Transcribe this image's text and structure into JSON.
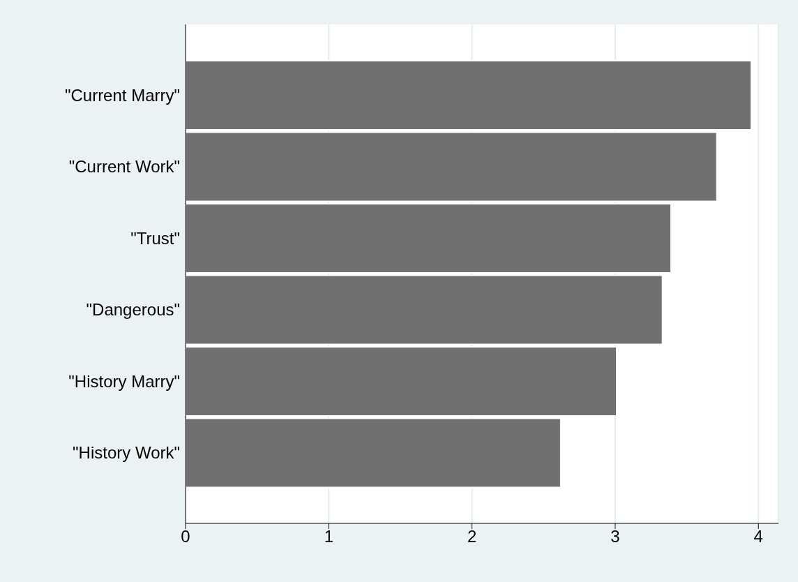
{
  "chart_data": {
    "type": "bar",
    "orientation": "horizontal",
    "categories": [
      "\"Current Marry\"",
      "\"Current Work\"",
      "\"Trust\"",
      "\"Dangerous\"",
      "\"History Marry\"",
      "\"History Work\""
    ],
    "values": [
      3.95,
      3.71,
      3.39,
      3.33,
      3.01,
      2.62
    ],
    "color": "#707070",
    "xlim": [
      0,
      4.14
    ],
    "xticks": [
      0,
      1,
      2,
      3,
      4
    ],
    "grid": "x"
  }
}
